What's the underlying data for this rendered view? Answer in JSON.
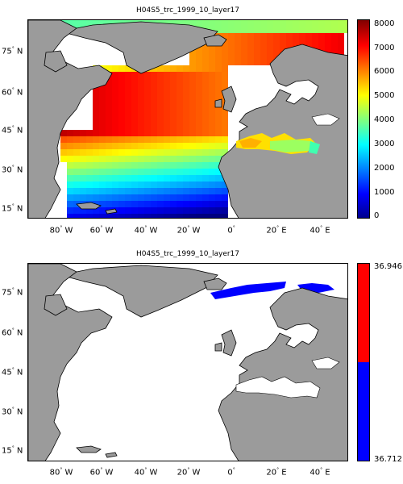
{
  "panels": [
    {
      "title": "H04S5_trc_1999_10_layer17",
      "colorbar_ticks": [
        "8000",
        "7000",
        "6000",
        "5000",
        "4000",
        "3000",
        "2000",
        "1000",
        "0"
      ],
      "lat_labels": [
        "75",
        "60",
        "45",
        "30",
        "15"
      ],
      "lat_suffix": "N",
      "lon_labels": [
        "80",
        "60",
        "40",
        "20",
        "0",
        "20",
        "40"
      ],
      "lon_suffix": [
        "W",
        "W",
        "W",
        "W",
        "",
        "E",
        "E"
      ],
      "colormap": "jet",
      "clim": [
        0,
        8000
      ]
    },
    {
      "title": "H04S5_trc_1999_10_layer17",
      "colorbar_ticks": [
        "36.946",
        "36.712"
      ],
      "lat_labels": [
        "75",
        "60",
        "45",
        "30",
        "15"
      ],
      "lat_suffix": "N",
      "lon_labels": [
        "80",
        "60",
        "40",
        "20",
        "0",
        "20",
        "40"
      ],
      "lon_suffix": [
        "W",
        "W",
        "W",
        "W",
        "",
        "E",
        "E"
      ],
      "colormap": "red-blue",
      "clim": [
        36.712,
        36.946
      ]
    }
  ],
  "colors": {
    "land": "#9b9b9b",
    "ocean_empty": "#ffffff",
    "red": "#ff0000",
    "blue": "#0000ff"
  }
}
